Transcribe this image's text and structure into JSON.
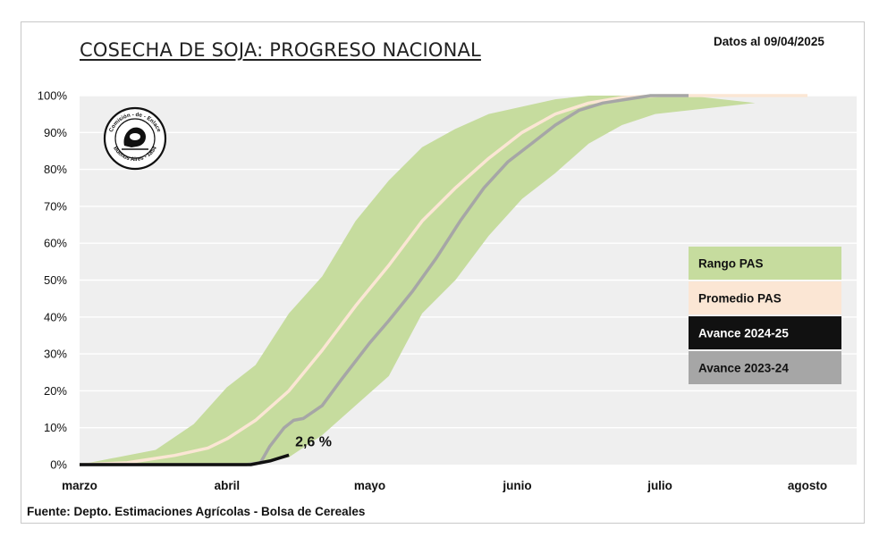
{
  "header": {
    "title": "COSECHA DE SOJA: PROGRESO NACIONAL",
    "date_label": "Datos al 09/04/2025"
  },
  "footer": {
    "source": "Fuente: Depto. Estimaciones Agrícolas - Bolsa de Cereales"
  },
  "logo": {
    "text_top": "Comisión - de - Enlace",
    "text_bottom": "Buenos Aires - 1854"
  },
  "colors": {
    "range": "#c6dc9e",
    "average": "#fbe6d4",
    "current": "#111111",
    "previous": "#a6a6a6",
    "plot_bg": "#efefef",
    "grid": "#ffffff"
  },
  "chart_data": {
    "type": "area",
    "title": "COSECHA DE SOJA: PROGRESO NACIONAL",
    "x_tick_labels": [
      "marzo",
      "abril",
      "mayo",
      "junio",
      "julio",
      "agosto"
    ],
    "x_ticks": [
      0,
      31,
      61,
      92,
      122,
      153
    ],
    "x_units": "days since March 1",
    "ylim": [
      0,
      100
    ],
    "y_tick_labels": [
      "0%",
      "10%",
      "20%",
      "30%",
      "40%",
      "50%",
      "60%",
      "70%",
      "80%",
      "90%",
      "100%"
    ],
    "grid": true,
    "legend_position": "right",
    "series": [
      {
        "name": "Rango PAS",
        "type": "band",
        "upper_x": [
          0,
          8,
          16,
          24,
          31,
          37,
          44,
          51,
          58,
          65,
          72,
          79,
          86,
          93,
          100,
          107,
          114,
          122,
          128
        ],
        "upper_y": [
          0,
          2,
          4,
          11,
          21,
          27,
          41,
          51,
          66,
          77,
          86,
          91,
          95,
          97,
          99,
          100,
          100,
          100,
          100
        ],
        "lower_x": [
          0,
          37,
          44,
          51,
          58,
          65,
          72,
          79,
          86,
          93,
          100,
          107,
          114,
          121,
          128,
          135,
          142
        ],
        "lower_y": [
          0,
          0,
          2,
          8,
          16,
          24,
          41,
          50,
          62,
          72,
          79,
          87,
          92,
          95,
          96,
          97,
          98
        ]
      },
      {
        "name": "Promedio PAS",
        "type": "line",
        "x": [
          0,
          10,
          20,
          27,
          31,
          37,
          44,
          51,
          58,
          65,
          72,
          79,
          86,
          93,
          100,
          107,
          114,
          122,
          153
        ],
        "y": [
          0,
          0.5,
          2.5,
          4.5,
          7,
          12,
          20,
          31,
          43,
          54,
          66,
          75,
          83,
          90,
          95,
          98,
          99.5,
          100,
          100
        ]
      },
      {
        "name": "Avance 2024-25",
        "type": "line",
        "x": [
          0,
          20,
          30,
          36,
          40,
          44
        ],
        "y": [
          0,
          0,
          0,
          0,
          1,
          2.6
        ],
        "annotation": "2,6 %"
      },
      {
        "name": "Avance 2023-24",
        "type": "line",
        "x": [
          0,
          30,
          35,
          38,
          40,
          43,
          45,
          47,
          51,
          55,
          61,
          65,
          70,
          75,
          80,
          85,
          90,
          95,
          100,
          105,
          110,
          115,
          120,
          125,
          128
        ],
        "y": [
          0,
          0,
          0,
          0.5,
          5,
          10,
          12,
          12.5,
          16,
          23,
          33,
          39,
          47,
          56,
          66,
          75,
          82,
          87,
          92,
          96,
          98,
          99,
          100,
          100,
          100
        ]
      }
    ],
    "legend": [
      "Rango PAS",
      "Promedio PAS",
      "Avance 2024-25",
      "Avance 2023-24"
    ]
  }
}
